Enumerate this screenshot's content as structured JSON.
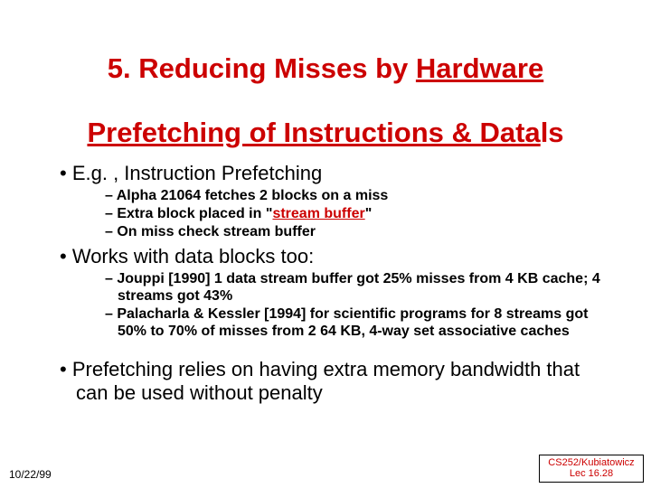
{
  "colors": {
    "accent": "#cc0000",
    "text": "#000000",
    "background": "#ffffff"
  },
  "typography": {
    "family": "Comic Sans MS",
    "title_pt": 31,
    "lvl1_pt": 22,
    "lvl2_pt": 16,
    "footer_pt": 12
  },
  "title": {
    "line1_pre": "5. Reducing Misses by ",
    "line1_ul": "Hardware",
    "line2_ul": "Prefetching of Instructions & Data",
    "line2_post": "ls"
  },
  "bullets": {
    "b1": "E.g. , Instruction Prefetching",
    "b1a": "Alpha 21064 fetches 2 blocks on a miss",
    "b1b_pre": "Extra block placed in \"",
    "b1b_ul": "stream buffer",
    "b1b_post": "\"",
    "b1c": "On miss check stream buffer",
    "b2": "Works with data blocks too:",
    "b2a": "Jouppi [1990] 1 data stream buffer got 25% misses from 4 KB cache; 4 streams got 43%",
    "b2b": "Palacharla & Kessler [1994] for scientific programs for 8 streams got 50% to 70% of misses from 2 64 KB, 4-way set associative caches",
    "b3": "Prefetching relies on having extra memory bandwidth that can be used without penalty"
  },
  "footer": {
    "left": "10/22/99",
    "right_line1": "CS252/Kubiatowicz",
    "right_line2": "Lec 16.28"
  }
}
